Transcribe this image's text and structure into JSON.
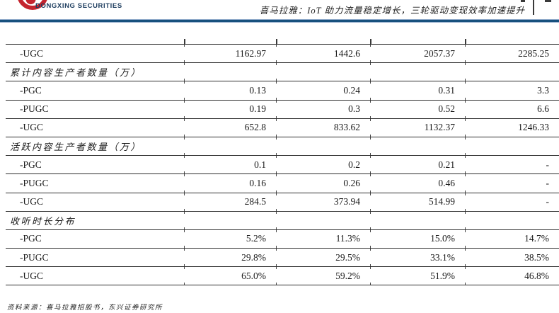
{
  "header": {
    "brand": "DONGXING SECURITIES",
    "title": "喜马拉雅：IoT 助力流量稳定增长，三轮驱动变现效率加速提升"
  },
  "colors": {
    "accent_red": "#c4242e",
    "brand_navy": "#1c3c5e",
    "rule_blue": "#17507d",
    "table_border": "#2e2e2e"
  },
  "table": {
    "rows": [
      {
        "type": "data",
        "label": "-UGC",
        "values": [
          "1162.97",
          "1442.6",
          "2057.37",
          "2285.25"
        ]
      },
      {
        "type": "section",
        "label": "累计内容生产者数量（万）",
        "values": [
          "",
          "",
          "",
          ""
        ]
      },
      {
        "type": "data",
        "label": "-PGC",
        "values": [
          "0.13",
          "0.24",
          "0.31",
          "3.3"
        ]
      },
      {
        "type": "data",
        "label": "-PUGC",
        "values": [
          "0.19",
          "0.3",
          "0.52",
          "6.6"
        ]
      },
      {
        "type": "data",
        "label": "-UGC",
        "values": [
          "652.8",
          "833.62",
          "1132.37",
          "1246.33"
        ]
      },
      {
        "type": "section",
        "label": "活跃内容生产者数量（万）",
        "values": [
          "",
          "",
          "",
          ""
        ]
      },
      {
        "type": "data",
        "label": "-PGC",
        "values": [
          "0.1",
          "0.2",
          "0.21",
          "-"
        ]
      },
      {
        "type": "data",
        "label": "-PUGC",
        "values": [
          "0.16",
          "0.26",
          "0.46",
          "-"
        ]
      },
      {
        "type": "data",
        "label": "-UGC",
        "values": [
          "284.5",
          "373.94",
          "514.99",
          "-"
        ]
      },
      {
        "type": "section",
        "label": "收听时长分布",
        "values": [
          "",
          "",
          "",
          ""
        ]
      },
      {
        "type": "data",
        "label": "-PGC",
        "values": [
          "5.2%",
          "11.3%",
          "15.0%",
          "14.7%"
        ]
      },
      {
        "type": "data",
        "label": "-PUGC",
        "values": [
          "29.8%",
          "29.5%",
          "33.1%",
          "38.5%"
        ]
      },
      {
        "type": "data",
        "label": "-UGC",
        "values": [
          "65.0%",
          "59.2%",
          "51.9%",
          "46.8%"
        ]
      }
    ]
  },
  "footer": {
    "source": "资料来源：喜马拉雅招股书，东兴证券研究所"
  }
}
